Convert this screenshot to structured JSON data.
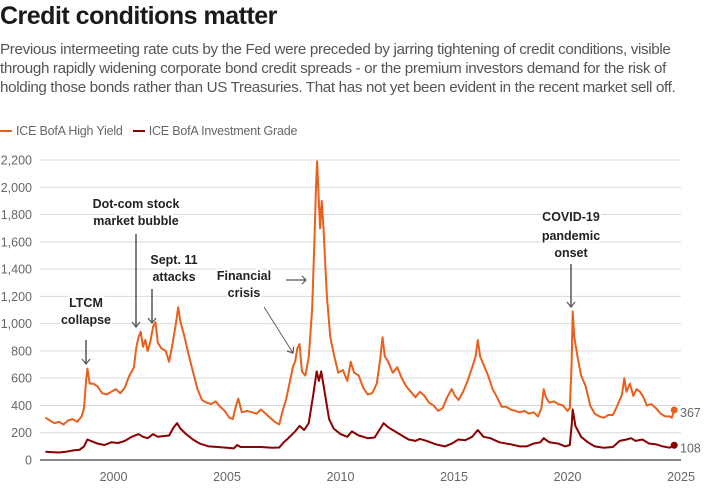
{
  "header": {
    "title": "Credit conditions matter",
    "subtitle": "Previous intermeeting rate cuts by the Fed were preceded by jarring tightening of credit conditions, visible through rapidly widening corporate bond credit spreads - or the premium investors demand for the risk of holding those bonds rather than US Treasuries. That has not yet been evident in the recent market sell off."
  },
  "legend": [
    {
      "label": "ICE BofA High Yield",
      "color": "#e8601c"
    },
    {
      "label": "ICE BofA Investment Grade",
      "color": "#8b0000"
    }
  ],
  "chart_data": {
    "type": "line",
    "title": "Credit conditions matter",
    "xlabel": "",
    "ylabel": "",
    "xlim": [
      1996.6,
      2025
    ],
    "ylim": [
      0,
      2200
    ],
    "grid": true,
    "legend_position": "top-left",
    "x_ticks": [
      2000,
      2005,
      2010,
      2015,
      2020,
      2025
    ],
    "y_ticks": [
      0,
      200,
      400,
      600,
      800,
      1000,
      1200,
      1400,
      1600,
      1800,
      2000,
      2200
    ],
    "y_tick_labels": [
      "0",
      "200",
      "400",
      "600",
      "800",
      "1,000",
      "1,200",
      "1,400",
      "1,600",
      "1,800",
      "2,000",
      "2,200"
    ],
    "series": [
      {
        "name": "ICE BofA High Yield",
        "color": "#e8601c",
        "end_label": "367",
        "points": [
          [
            1997.0,
            310
          ],
          [
            1997.2,
            290
          ],
          [
            1997.4,
            270
          ],
          [
            1997.6,
            280
          ],
          [
            1997.8,
            260
          ],
          [
            1998.0,
            290
          ],
          [
            1998.2,
            300
          ],
          [
            1998.4,
            280
          ],
          [
            1998.6,
            320
          ],
          [
            1998.7,
            380
          ],
          [
            1998.8,
            600
          ],
          [
            1998.85,
            670
          ],
          [
            1998.95,
            560
          ],
          [
            1999.1,
            560
          ],
          [
            1999.3,
            540
          ],
          [
            1999.5,
            490
          ],
          [
            1999.7,
            480
          ],
          [
            1999.9,
            500
          ],
          [
            2000.1,
            520
          ],
          [
            2000.3,
            490
          ],
          [
            2000.5,
            530
          ],
          [
            2000.7,
            620
          ],
          [
            2000.9,
            680
          ],
          [
            2001.0,
            820
          ],
          [
            2001.1,
            900
          ],
          [
            2001.2,
            940
          ],
          [
            2001.3,
            830
          ],
          [
            2001.4,
            880
          ],
          [
            2001.5,
            800
          ],
          [
            2001.6,
            850
          ],
          [
            2001.75,
            980
          ],
          [
            2001.85,
            1010
          ],
          [
            2001.95,
            860
          ],
          [
            2002.1,
            820
          ],
          [
            2002.3,
            800
          ],
          [
            2002.45,
            720
          ],
          [
            2002.6,
            850
          ],
          [
            2002.75,
            1000
          ],
          [
            2002.85,
            1120
          ],
          [
            2002.95,
            1010
          ],
          [
            2003.1,
            920
          ],
          [
            2003.3,
            780
          ],
          [
            2003.5,
            650
          ],
          [
            2003.7,
            520
          ],
          [
            2003.9,
            440
          ],
          [
            2004.1,
            420
          ],
          [
            2004.3,
            410
          ],
          [
            2004.5,
            430
          ],
          [
            2004.7,
            390
          ],
          [
            2004.9,
            360
          ],
          [
            2005.1,
            310
          ],
          [
            2005.25,
            300
          ],
          [
            2005.4,
            400
          ],
          [
            2005.5,
            450
          ],
          [
            2005.65,
            350
          ],
          [
            2005.9,
            360
          ],
          [
            2006.1,
            350
          ],
          [
            2006.3,
            340
          ],
          [
            2006.5,
            370
          ],
          [
            2006.7,
            340
          ],
          [
            2006.9,
            310
          ],
          [
            2007.1,
            280
          ],
          [
            2007.3,
            260
          ],
          [
            2007.45,
            360
          ],
          [
            2007.6,
            440
          ],
          [
            2007.8,
            600
          ],
          [
            2007.9,
            680
          ],
          [
            2008.0,
            720
          ],
          [
            2008.1,
            820
          ],
          [
            2008.2,
            850
          ],
          [
            2008.3,
            650
          ],
          [
            2008.45,
            620
          ],
          [
            2008.6,
            750
          ],
          [
            2008.75,
            1100
          ],
          [
            2008.85,
            1600
          ],
          [
            2008.92,
            2000
          ],
          [
            2008.97,
            2190
          ],
          [
            2009.03,
            1950
          ],
          [
            2009.1,
            1700
          ],
          [
            2009.17,
            1900
          ],
          [
            2009.25,
            1700
          ],
          [
            2009.4,
            1200
          ],
          [
            2009.55,
            900
          ],
          [
            2009.7,
            780
          ],
          [
            2009.9,
            640
          ],
          [
            2010.1,
            660
          ],
          [
            2010.3,
            580
          ],
          [
            2010.45,
            720
          ],
          [
            2010.6,
            640
          ],
          [
            2010.8,
            620
          ],
          [
            2011.0,
            530
          ],
          [
            2011.2,
            480
          ],
          [
            2011.4,
            490
          ],
          [
            2011.6,
            560
          ],
          [
            2011.75,
            740
          ],
          [
            2011.85,
            900
          ],
          [
            2011.95,
            760
          ],
          [
            2012.1,
            720
          ],
          [
            2012.3,
            640
          ],
          [
            2012.5,
            680
          ],
          [
            2012.7,
            600
          ],
          [
            2012.9,
            540
          ],
          [
            2013.1,
            500
          ],
          [
            2013.3,
            460
          ],
          [
            2013.5,
            500
          ],
          [
            2013.7,
            470
          ],
          [
            2013.9,
            420
          ],
          [
            2014.1,
            400
          ],
          [
            2014.3,
            360
          ],
          [
            2014.5,
            380
          ],
          [
            2014.7,
            460
          ],
          [
            2014.9,
            520
          ],
          [
            2015.05,
            470
          ],
          [
            2015.2,
            440
          ],
          [
            2015.4,
            500
          ],
          [
            2015.6,
            580
          ],
          [
            2015.8,
            680
          ],
          [
            2015.95,
            760
          ],
          [
            2016.05,
            880
          ],
          [
            2016.15,
            760
          ],
          [
            2016.3,
            700
          ],
          [
            2016.5,
            620
          ],
          [
            2016.7,
            520
          ],
          [
            2016.9,
            460
          ],
          [
            2017.1,
            390
          ],
          [
            2017.3,
            390
          ],
          [
            2017.5,
            370
          ],
          [
            2017.7,
            360
          ],
          [
            2017.9,
            350
          ],
          [
            2018.1,
            360
          ],
          [
            2018.3,
            340
          ],
          [
            2018.5,
            350
          ],
          [
            2018.7,
            320
          ],
          [
            2018.85,
            380
          ],
          [
            2018.95,
            520
          ],
          [
            2019.05,
            460
          ],
          [
            2019.2,
            420
          ],
          [
            2019.4,
            430
          ],
          [
            2019.6,
            410
          ],
          [
            2019.8,
            400
          ],
          [
            2020.0,
            360
          ],
          [
            2020.1,
            380
          ],
          [
            2020.18,
            700
          ],
          [
            2020.23,
            1090
          ],
          [
            2020.3,
            900
          ],
          [
            2020.45,
            750
          ],
          [
            2020.6,
            620
          ],
          [
            2020.8,
            540
          ],
          [
            2021.0,
            400
          ],
          [
            2021.2,
            340
          ],
          [
            2021.4,
            320
          ],
          [
            2021.6,
            310
          ],
          [
            2021.8,
            330
          ],
          [
            2022.0,
            330
          ],
          [
            2022.2,
            400
          ],
          [
            2022.4,
            480
          ],
          [
            2022.5,
            600
          ],
          [
            2022.6,
            500
          ],
          [
            2022.75,
            560
          ],
          [
            2022.9,
            470
          ],
          [
            2023.05,
            520
          ],
          [
            2023.2,
            500
          ],
          [
            2023.35,
            460
          ],
          [
            2023.5,
            400
          ],
          [
            2023.7,
            410
          ],
          [
            2023.9,
            380
          ],
          [
            2024.1,
            340
          ],
          [
            2024.3,
            320
          ],
          [
            2024.5,
            320
          ],
          [
            2024.6,
            310
          ],
          [
            2024.7,
            367
          ]
        ]
      },
      {
        "name": "ICE BofA Investment Grade",
        "color": "#8b0000",
        "end_label": "108",
        "points": [
          [
            1997.0,
            60
          ],
          [
            1997.3,
            58
          ],
          [
            1997.6,
            55
          ],
          [
            1997.9,
            60
          ],
          [
            1998.2,
            70
          ],
          [
            1998.5,
            75
          ],
          [
            1998.7,
            100
          ],
          [
            1998.85,
            150
          ],
          [
            1999.0,
            140
          ],
          [
            1999.3,
            120
          ],
          [
            1999.6,
            110
          ],
          [
            1999.9,
            130
          ],
          [
            2000.2,
            125
          ],
          [
            2000.5,
            140
          ],
          [
            2000.8,
            170
          ],
          [
            2001.1,
            190
          ],
          [
            2001.3,
            170
          ],
          [
            2001.5,
            160
          ],
          [
            2001.75,
            190
          ],
          [
            2001.95,
            170
          ],
          [
            2002.2,
            175
          ],
          [
            2002.45,
            180
          ],
          [
            2002.65,
            240
          ],
          [
            2002.8,
            270
          ],
          [
            2002.95,
            230
          ],
          [
            2003.2,
            190
          ],
          [
            2003.5,
            150
          ],
          [
            2003.8,
            120
          ],
          [
            2004.2,
            100
          ],
          [
            2004.6,
            95
          ],
          [
            2005.0,
            90
          ],
          [
            2005.3,
            85
          ],
          [
            2005.45,
            110
          ],
          [
            2005.6,
            95
          ],
          [
            2006.0,
            95
          ],
          [
            2006.5,
            95
          ],
          [
            2007.0,
            90
          ],
          [
            2007.3,
            92
          ],
          [
            2007.5,
            130
          ],
          [
            2007.7,
            160
          ],
          [
            2008.0,
            210
          ],
          [
            2008.2,
            250
          ],
          [
            2008.4,
            220
          ],
          [
            2008.6,
            270
          ],
          [
            2008.8,
            480
          ],
          [
            2008.95,
            650
          ],
          [
            2009.05,
            580
          ],
          [
            2009.15,
            650
          ],
          [
            2009.3,
            500
          ],
          [
            2009.5,
            300
          ],
          [
            2009.7,
            230
          ],
          [
            2010.0,
            190
          ],
          [
            2010.3,
            170
          ],
          [
            2010.5,
            210
          ],
          [
            2010.8,
            180
          ],
          [
            2011.2,
            160
          ],
          [
            2011.5,
            165
          ],
          [
            2011.75,
            230
          ],
          [
            2011.9,
            270
          ],
          [
            2012.1,
            240
          ],
          [
            2012.4,
            210
          ],
          [
            2012.7,
            180
          ],
          [
            2013.0,
            150
          ],
          [
            2013.3,
            140
          ],
          [
            2013.5,
            155
          ],
          [
            2013.8,
            140
          ],
          [
            2014.2,
            115
          ],
          [
            2014.6,
            100
          ],
          [
            2014.9,
            120
          ],
          [
            2015.2,
            150
          ],
          [
            2015.5,
            145
          ],
          [
            2015.8,
            170
          ],
          [
            2016.05,
            220
          ],
          [
            2016.3,
            170
          ],
          [
            2016.6,
            160
          ],
          [
            2017.0,
            130
          ],
          [
            2017.5,
            115
          ],
          [
            2017.9,
            100
          ],
          [
            2018.2,
            100
          ],
          [
            2018.5,
            120
          ],
          [
            2018.8,
            130
          ],
          [
            2018.95,
            160
          ],
          [
            2019.2,
            130
          ],
          [
            2019.6,
            120
          ],
          [
            2019.9,
            100
          ],
          [
            2020.1,
            110
          ],
          [
            2020.18,
            250
          ],
          [
            2020.23,
            370
          ],
          [
            2020.35,
            250
          ],
          [
            2020.6,
            170
          ],
          [
            2020.9,
            130
          ],
          [
            2021.2,
            100
          ],
          [
            2021.6,
            90
          ],
          [
            2022.0,
            95
          ],
          [
            2022.3,
            140
          ],
          [
            2022.6,
            150
          ],
          [
            2022.8,
            160
          ],
          [
            2023.0,
            140
          ],
          [
            2023.3,
            150
          ],
          [
            2023.6,
            120
          ],
          [
            2023.9,
            115
          ],
          [
            2024.2,
            100
          ],
          [
            2024.5,
            90
          ],
          [
            2024.7,
            108
          ]
        ]
      }
    ],
    "annotations": [
      {
        "lines": [
          "LTCM",
          "collapse"
        ],
        "x": 1998.8,
        "y": 680
      },
      {
        "lines": [
          "Dot-com stock",
          "market bubble"
        ],
        "x": 2001.0,
        "y": 940
      },
      {
        "lines": [
          "Sept. 11",
          "attacks"
        ],
        "x": 2001.7,
        "y": 1010
      },
      {
        "lines": [
          "Financial",
          "crisis"
        ],
        "x": 2008.3,
        "y": 780
      },
      {
        "lines": [
          "COVID-19",
          "pandemic",
          "onset"
        ],
        "x": 2020.2,
        "y": 1100
      }
    ]
  }
}
